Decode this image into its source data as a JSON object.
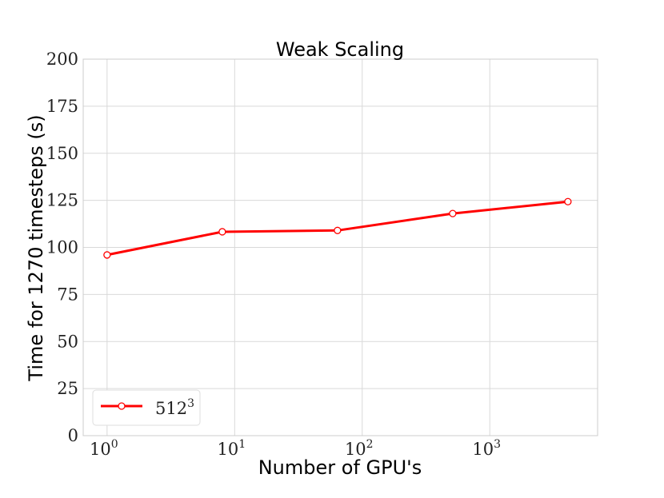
{
  "chart_data": {
    "type": "line",
    "title": "Weak Scaling",
    "xlabel": "Number of GPU's",
    "ylabel": "Time for 1270 timesteps (s)",
    "x_scale": "log",
    "xlim": [
      0.65,
      7000
    ],
    "ylim": [
      0,
      200
    ],
    "x_ticks": [
      {
        "value": 1,
        "base": "10",
        "exp": "0"
      },
      {
        "value": 10,
        "base": "10",
        "exp": "1"
      },
      {
        "value": 100,
        "base": "10",
        "exp": "2"
      },
      {
        "value": 1000,
        "base": "10",
        "exp": "3"
      }
    ],
    "y_ticks": [
      0,
      25,
      50,
      75,
      100,
      125,
      150,
      175,
      200
    ],
    "grid": true,
    "legend_position": "lower-left",
    "series": [
      {
        "name_base": "512",
        "name_exp": "3",
        "color": "#ff0000",
        "x": [
          1,
          8,
          64,
          512,
          4096
        ],
        "y": [
          96,
          108.3,
          109,
          118,
          124.3
        ]
      }
    ]
  }
}
